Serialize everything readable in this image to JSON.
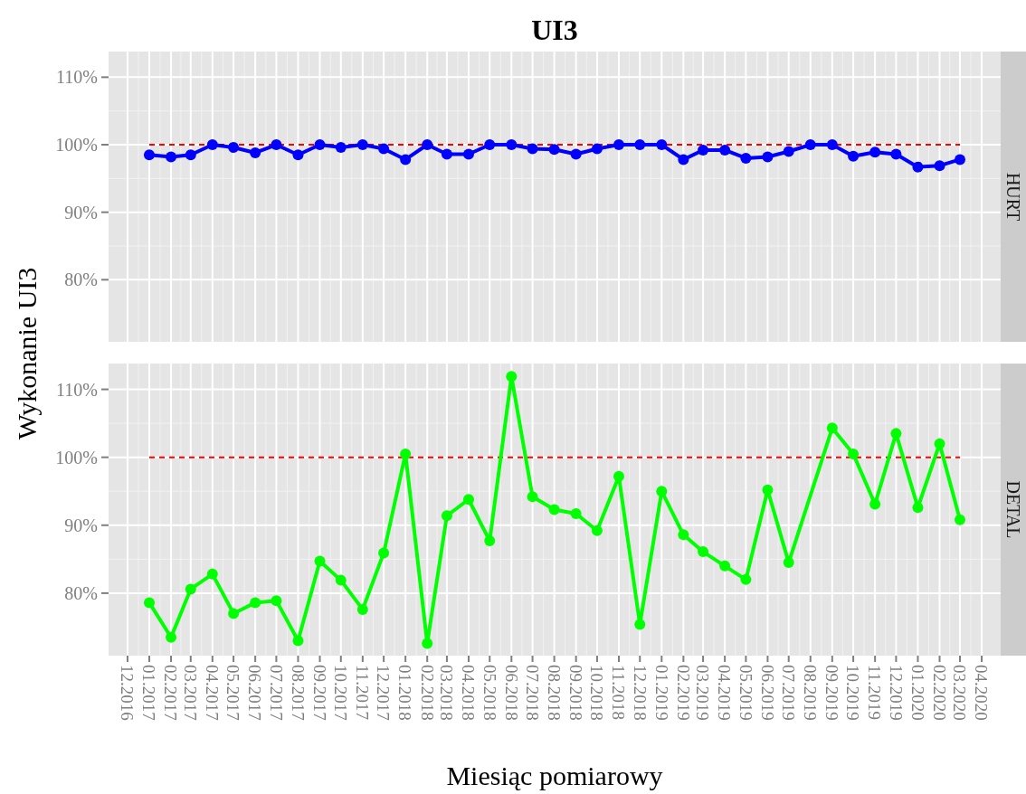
{
  "chart_data": [
    {
      "type": "line",
      "title": "UI3",
      "ylabel": "Wykonanie UI3",
      "grid": true,
      "marker": "circle",
      "line_style": "solid",
      "tick_labels": "y",
      "x": [
        "2017-01",
        "2017-02",
        "2017-03",
        "2017-04",
        "2017-05",
        "2017-06",
        "2017-07",
        "2017-08",
        "2017-09",
        "2017-10",
        "2017-11",
        "2017-12",
        "2018-01",
        "2018-02",
        "2018-03",
        "2018-04",
        "2018-05",
        "2018-06",
        "2018-07",
        "2018-08",
        "2018-09",
        "2018-10",
        "2018-11",
        "2018-12",
        "2019-01",
        "2019-02",
        "2019-03",
        "2019-04",
        "2019-05",
        "2019-06",
        "2019-07",
        "2019-08",
        "2019-09",
        "2019-10",
        "2019-11",
        "2019-12",
        "2020-01",
        "2020-02",
        "2020-03"
      ],
      "series": [
        {
          "name": "HURT",
          "color": "#0000ff",
          "values": [
            98.5,
            98.2,
            98.5,
            100,
            99.6,
            98.8,
            100,
            98.5,
            100,
            99.6,
            100,
            99.4,
            97.8,
            100,
            98.6,
            98.6,
            100,
            100,
            99.4,
            99.3,
            98.6,
            99.4,
            100,
            100,
            100,
            97.8,
            99.2,
            99.2,
            98.0,
            98.2,
            99.0,
            100,
            100,
            98.3,
            98.9,
            98.6,
            96.7,
            96.9,
            97.8
          ]
        }
      ],
      "ref_lines": [
        {
          "axis": "y",
          "value": 100,
          "color": "#ff0000",
          "line_style": "dashed"
        }
      ],
      "xlim": [
        "2016-11-04",
        "2020-04-28"
      ],
      "ylim": [
        70.8,
        113.8
      ],
      "yticks": [
        {
          "value": 80,
          "label": "80%"
        },
        {
          "value": 90,
          "label": "90%"
        },
        {
          "value": 100,
          "label": "100%"
        },
        {
          "value": 110,
          "label": "110%"
        }
      ],
      "xticks": [
        {
          "value": "2016-12",
          "label": null
        },
        {
          "value": "2017-01",
          "label": null
        },
        {
          "value": "2017-02",
          "label": null
        },
        {
          "value": "2017-03",
          "label": null
        },
        {
          "value": "2017-04",
          "label": null
        },
        {
          "value": "2017-05",
          "label": null
        },
        {
          "value": "2017-06",
          "label": null
        },
        {
          "value": "2017-07",
          "label": null
        },
        {
          "value": "2017-08",
          "label": null
        },
        {
          "value": "2017-09",
          "label": null
        },
        {
          "value": "2017-10",
          "label": null
        },
        {
          "value": "2017-11",
          "label": null
        },
        {
          "value": "2017-12",
          "label": null
        },
        {
          "value": "2018-01",
          "label": null
        },
        {
          "value": "2018-02",
          "label": null
        },
        {
          "value": "2018-03",
          "label": null
        },
        {
          "value": "2018-04",
          "label": null
        },
        {
          "value": "2018-05",
          "label": null
        },
        {
          "value": "2018-06",
          "label": null
        },
        {
          "value": "2018-07",
          "label": null
        },
        {
          "value": "2018-08",
          "label": null
        },
        {
          "value": "2018-09",
          "label": null
        },
        {
          "value": "2018-10",
          "label": null
        },
        {
          "value": "2018-11",
          "label": null
        },
        {
          "value": "2018-12",
          "label": null
        },
        {
          "value": "2019-01",
          "label": null
        },
        {
          "value": "2019-02",
          "label": null
        },
        {
          "value": "2019-03",
          "label": null
        },
        {
          "value": "2019-04",
          "label": null
        },
        {
          "value": "2019-05",
          "label": null
        },
        {
          "value": "2019-06",
          "label": null
        },
        {
          "value": "2019-07",
          "label": null
        },
        {
          "value": "2019-08",
          "label": null
        },
        {
          "value": "2019-09",
          "label": null
        },
        {
          "value": "2019-10",
          "label": null
        },
        {
          "value": "2019-11",
          "label": null
        },
        {
          "value": "2019-12",
          "label": null
        },
        {
          "value": "2020-01",
          "label": null
        },
        {
          "value": "2020-02",
          "label": null
        },
        {
          "value": "2020-03",
          "label": null
        },
        {
          "value": "2020-04",
          "label": null
        }
      ]
    },
    {
      "type": "line",
      "xlabel": "Miesiąc pomiarowy",
      "grid": true,
      "marker": "circle",
      "line_style": "solid",
      "series": [
        {
          "name": "DETAL",
          "color": "#00ff00",
          "x": [
            "2017-01",
            "2017-02",
            "2017-03",
            "2017-04",
            "2017-05",
            "2017-06",
            "2017-07",
            "2017-08",
            "2017-09",
            "2017-10",
            "2017-11",
            "2017-12",
            "2018-01",
            "2018-02",
            "2018-03",
            "2018-04",
            "2018-05",
            "2018-06",
            "2018-07",
            "2018-08",
            "2018-09",
            "2018-10",
            "2018-11",
            "2018-12",
            "2019-01",
            "2019-02",
            "2019-03",
            "2019-04",
            "2019-05",
            "2019-06",
            "2019-07",
            "2019-09",
            "2019-10",
            "2019-11",
            "2019-12",
            "2020-01",
            "2020-02",
            "2020-03"
          ],
          "values": [
            78.6,
            73.5,
            80.6,
            82.8,
            77.0,
            78.6,
            78.9,
            73.0,
            84.7,
            81.9,
            77.6,
            85.9,
            100.5,
            72.6,
            91.4,
            93.8,
            87.7,
            111.9,
            94.2,
            92.3,
            91.7,
            89.2,
            97.2,
            75.4,
            95.0,
            88.6,
            86.1,
            84.0,
            82.0,
            95.2,
            84.5,
            104.3,
            100.5,
            93.1,
            103.5,
            92.6,
            102.0,
            90.8
          ]
        }
      ],
      "ref_lines": [
        {
          "axis": "y",
          "value": 100,
          "color": "#ff0000",
          "line_style": "dashed"
        }
      ],
      "xlim": [
        "2016-11-04",
        "2020-04-28"
      ],
      "ylim": [
        70.8,
        113.8
      ],
      "yticks": [
        {
          "value": 80,
          "label": "80%"
        },
        {
          "value": 90,
          "label": "90%"
        },
        {
          "value": 100,
          "label": "100%"
        },
        {
          "value": 110,
          "label": "110%"
        }
      ],
      "xticks": [
        {
          "value": "2016-12",
          "label": "12.2016"
        },
        {
          "value": "2017-01",
          "label": "01.2017"
        },
        {
          "value": "2017-02",
          "label": "02.2017"
        },
        {
          "value": "2017-03",
          "label": "03.2017"
        },
        {
          "value": "2017-04",
          "label": "04.2017"
        },
        {
          "value": "2017-05",
          "label": "05.2017"
        },
        {
          "value": "2017-06",
          "label": "06.2017"
        },
        {
          "value": "2017-07",
          "label": "07.2017"
        },
        {
          "value": "2017-08",
          "label": "08.2017"
        },
        {
          "value": "2017-09",
          "label": "09.2017"
        },
        {
          "value": "2017-10",
          "label": "10.2017"
        },
        {
          "value": "2017-11",
          "label": "11.2017"
        },
        {
          "value": "2017-12",
          "label": "12.2017"
        },
        {
          "value": "2018-01",
          "label": "01.2018"
        },
        {
          "value": "2018-02",
          "label": "02.2018"
        },
        {
          "value": "2018-03",
          "label": "03.2018"
        },
        {
          "value": "2018-04",
          "label": "04.2018"
        },
        {
          "value": "2018-05",
          "label": "05.2018"
        },
        {
          "value": "2018-06",
          "label": "06.2018"
        },
        {
          "value": "2018-07",
          "label": "07.2018"
        },
        {
          "value": "2018-08",
          "label": "08.2018"
        },
        {
          "value": "2018-09",
          "label": "09.2018"
        },
        {
          "value": "2018-10",
          "label": "10.2018"
        },
        {
          "value": "2018-11",
          "label": "11.2018"
        },
        {
          "value": "2018-12",
          "label": "12.2018"
        },
        {
          "value": "2019-01",
          "label": "01.2019"
        },
        {
          "value": "2019-02",
          "label": "02.2019"
        },
        {
          "value": "2019-03",
          "label": "03.2019"
        },
        {
          "value": "2019-04",
          "label": "04.2019"
        },
        {
          "value": "2019-05",
          "label": "05.2019"
        },
        {
          "value": "2019-06",
          "label": "06.2019"
        },
        {
          "value": "2019-07",
          "label": "07.2019"
        },
        {
          "value": "2019-08",
          "label": "08.2019"
        },
        {
          "value": "2019-09",
          "label": "09.2019"
        },
        {
          "value": "2019-10",
          "label": "10.2019"
        },
        {
          "value": "2019-11",
          "label": "11.2019"
        },
        {
          "value": "2019-12",
          "label": "12.2019"
        },
        {
          "value": "2020-01",
          "label": "01.2020"
        },
        {
          "value": "2020-02",
          "label": "02.2020"
        },
        {
          "value": "2020-03",
          "label": "03.2020"
        },
        {
          "value": "2020-04",
          "label": "04.2020"
        }
      ]
    }
  ]
}
